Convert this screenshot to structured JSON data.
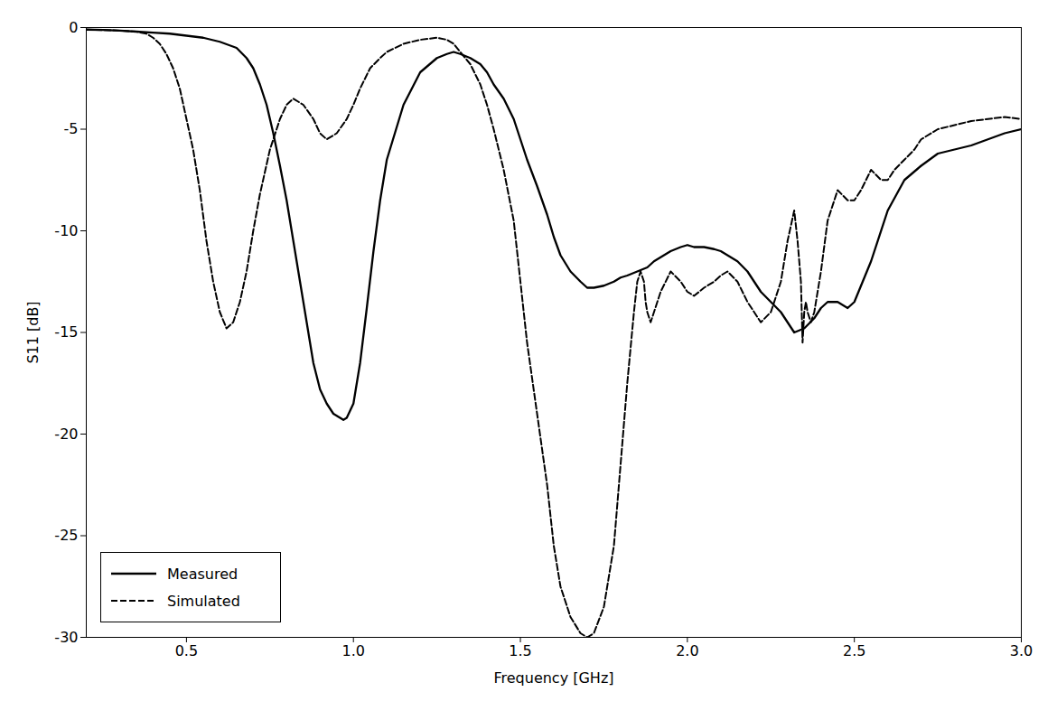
{
  "chart_data": {
    "type": "line",
    "xlabel": "Frequency [GHz]",
    "ylabel": "S11 [dB]",
    "xlim": [
      0.2,
      3.0
    ],
    "ylim": [
      -30,
      0
    ],
    "xticks": [
      0.5,
      {
        "value": 1.0,
        "label": "1.0"
      },
      1.5,
      {
        "value": 2.0,
        "label": "2.0"
      },
      2.5,
      {
        "value": 3.0,
        "label": "3.0"
      }
    ],
    "yticks": [
      0,
      -5,
      -10,
      -15,
      -20,
      -25,
      -30
    ],
    "grid": false,
    "legend": "lower left",
    "series": [
      {
        "name": "Measured",
        "color": "#000000",
        "line_style": "solid",
        "x": [
          0.2,
          0.25,
          0.3,
          0.35,
          0.4,
          0.45,
          0.5,
          0.55,
          0.6,
          0.65,
          0.68,
          0.7,
          0.72,
          0.74,
          0.76,
          0.78,
          0.8,
          0.82,
          0.84,
          0.86,
          0.88,
          0.9,
          0.92,
          0.94,
          0.96,
          0.97,
          0.98,
          1.0,
          1.02,
          1.04,
          1.06,
          1.08,
          1.1,
          1.15,
          1.2,
          1.25,
          1.28,
          1.3,
          1.32,
          1.35,
          1.38,
          1.4,
          1.42,
          1.45,
          1.48,
          1.5,
          1.52,
          1.55,
          1.58,
          1.6,
          1.62,
          1.65,
          1.68,
          1.7,
          1.72,
          1.75,
          1.78,
          1.8,
          1.82,
          1.85,
          1.88,
          1.9,
          1.92,
          1.95,
          1.98,
          2.0,
          2.02,
          2.05,
          2.08,
          2.1,
          2.12,
          2.15,
          2.18,
          2.2,
          2.22,
          2.25,
          2.28,
          2.3,
          2.32,
          2.35,
          2.38,
          2.4,
          2.42,
          2.45,
          2.48,
          2.5,
          2.55,
          2.6,
          2.65,
          2.7,
          2.75,
          2.8,
          2.85,
          2.9,
          2.95,
          3.0
        ],
        "values": [
          -0.1,
          -0.12,
          -0.15,
          -0.2,
          -0.25,
          -0.3,
          -0.4,
          -0.5,
          -0.7,
          -1.0,
          -1.5,
          -2.0,
          -2.8,
          -3.8,
          -5.2,
          -6.8,
          -8.5,
          -10.5,
          -12.5,
          -14.5,
          -16.5,
          -17.8,
          -18.5,
          -19.0,
          -19.2,
          -19.3,
          -19.2,
          -18.5,
          -16.5,
          -13.8,
          -11.0,
          -8.5,
          -6.5,
          -3.8,
          -2.2,
          -1.5,
          -1.3,
          -1.2,
          -1.3,
          -1.5,
          -1.8,
          -2.2,
          -2.8,
          -3.5,
          -4.5,
          -5.5,
          -6.5,
          -7.8,
          -9.2,
          -10.3,
          -11.2,
          -12.0,
          -12.5,
          -12.8,
          -12.8,
          -12.7,
          -12.5,
          -12.3,
          -12.2,
          -12.0,
          -11.8,
          -11.5,
          -11.3,
          -11.0,
          -10.8,
          -10.7,
          -10.8,
          -10.8,
          -10.9,
          -11.0,
          -11.2,
          -11.5,
          -12.0,
          -12.5,
          -13.0,
          -13.5,
          -14.0,
          -14.5,
          -15.0,
          -14.8,
          -14.3,
          -13.8,
          -13.5,
          -13.5,
          -13.8,
          -13.5,
          -11.5,
          -9.0,
          -7.5,
          -6.8,
          -6.2,
          -6.0,
          -5.8,
          -5.5,
          -5.2,
          -5.0
        ]
      },
      {
        "name": "Simulated",
        "color": "#000000",
        "line_style": "dashed",
        "x": [
          0.2,
          0.25,
          0.3,
          0.35,
          0.38,
          0.4,
          0.42,
          0.44,
          0.46,
          0.48,
          0.5,
          0.52,
          0.54,
          0.56,
          0.58,
          0.6,
          0.62,
          0.64,
          0.65,
          0.66,
          0.68,
          0.7,
          0.72,
          0.75,
          0.78,
          0.8,
          0.82,
          0.85,
          0.88,
          0.9,
          0.92,
          0.95,
          0.98,
          1.0,
          1.02,
          1.05,
          1.08,
          1.1,
          1.15,
          1.2,
          1.25,
          1.28,
          1.3,
          1.32,
          1.35,
          1.38,
          1.4,
          1.42,
          1.45,
          1.48,
          1.5,
          1.52,
          1.55,
          1.58,
          1.6,
          1.62,
          1.65,
          1.68,
          1.7,
          1.72,
          1.75,
          1.78,
          1.8,
          1.82,
          1.84,
          1.85,
          1.86,
          1.87,
          1.875,
          1.88,
          1.89,
          1.9,
          1.92,
          1.95,
          1.98,
          2.0,
          2.02,
          2.05,
          2.08,
          2.1,
          2.12,
          2.15,
          2.18,
          2.2,
          2.22,
          2.25,
          2.28,
          2.3,
          2.32,
          2.33,
          2.34,
          2.345,
          2.35,
          2.355,
          2.36,
          2.37,
          2.38,
          2.4,
          2.42,
          2.45,
          2.48,
          2.5,
          2.52,
          2.55,
          2.58,
          2.6,
          2.62,
          2.65,
          2.68,
          2.7,
          2.75,
          2.8,
          2.85,
          2.9,
          2.95,
          3.0
        ],
        "values": [
          -0.1,
          -0.12,
          -0.15,
          -0.2,
          -0.3,
          -0.5,
          -0.8,
          -1.3,
          -2.0,
          -3.0,
          -4.5,
          -6.0,
          -8.0,
          -10.5,
          -12.5,
          -14.0,
          -14.8,
          -14.5,
          -14.0,
          -13.5,
          -12.0,
          -10.0,
          -8.2,
          -6.0,
          -4.5,
          -3.8,
          -3.5,
          -3.8,
          -4.5,
          -5.2,
          -5.5,
          -5.2,
          -4.5,
          -3.8,
          -3.0,
          -2.0,
          -1.5,
          -1.2,
          -0.8,
          -0.6,
          -0.5,
          -0.6,
          -0.8,
          -1.2,
          -1.8,
          -2.8,
          -3.8,
          -5.0,
          -7.0,
          -9.5,
          -12.5,
          -15.5,
          -19.0,
          -22.5,
          -25.5,
          -27.5,
          -29.0,
          -29.8,
          -30.0,
          -29.8,
          -28.5,
          -25.5,
          -21.5,
          -17.5,
          -14.0,
          -12.5,
          -12.0,
          -12.5,
          -13.5,
          -14.0,
          -14.5,
          -14.0,
          -13.0,
          -12.0,
          -12.5,
          -13.0,
          -13.2,
          -12.8,
          -12.5,
          -12.2,
          -12.0,
          -12.5,
          -13.5,
          -14.0,
          -14.5,
          -14.0,
          -12.5,
          -10.5,
          -9.0,
          -10.5,
          -12.5,
          -15.5,
          -14.0,
          -13.5,
          -14.0,
          -14.5,
          -14.0,
          -12.0,
          -9.5,
          -8.0,
          -8.5,
          -8.5,
          -8.0,
          -7.0,
          -7.5,
          -7.5,
          -7.0,
          -6.5,
          -6.0,
          -5.5,
          -5.0,
          -4.8,
          -4.6,
          -4.5,
          -4.4,
          -4.5
        ]
      }
    ]
  }
}
